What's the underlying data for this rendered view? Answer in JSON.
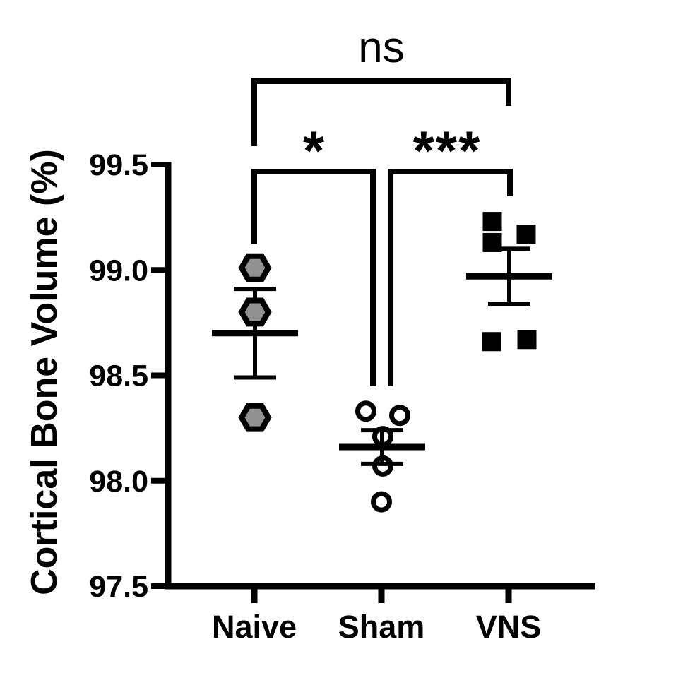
{
  "chart_data": {
    "type": "scatter",
    "title": "",
    "xlabel": "",
    "ylabel": "Cortical Bone Volume (%)",
    "ylim": [
      97.5,
      99.5
    ],
    "yticks": [
      97.5,
      98.0,
      98.5,
      99.0,
      99.5
    ],
    "ytick_labels": [
      "97.5",
      "98.0",
      "98.5",
      "99.0",
      "99.5"
    ],
    "categories": [
      "Naive",
      "Sham",
      "VNS"
    ],
    "grid": false,
    "legend": "none",
    "error_bar_type": "mean_sem",
    "series": [
      {
        "name": "Naive",
        "marker": "hexagon",
        "marker_fill": "#919191",
        "marker_stroke": "#000000",
        "values": [
          99.01,
          98.8,
          98.3
        ],
        "x_offsets": [
          1,
          1,
          1
        ],
        "mean": 98.7,
        "sem": 0.21
      },
      {
        "name": "Sham",
        "marker": "open-circle",
        "marker_fill": "none",
        "marker_stroke": "#000000",
        "values": [
          98.33,
          98.31,
          98.21,
          98.07,
          97.9
        ],
        "x_offsets": [
          -22,
          26,
          2,
          2,
          0
        ],
        "mean": 98.16,
        "sem": 0.08
      },
      {
        "name": "VNS",
        "marker": "square",
        "marker_fill": "#000000",
        "marker_stroke": "#000000",
        "values": [
          99.23,
          99.17,
          99.13,
          98.66,
          98.67
        ],
        "x_offsets": [
          -23,
          25,
          -23,
          -24,
          26
        ],
        "mean": 98.97,
        "sem": 0.13
      }
    ],
    "annotations": [
      {
        "label": "ns",
        "from": "Naive",
        "to": "VNS"
      },
      {
        "label": "*",
        "from": "Naive",
        "to": "Sham"
      },
      {
        "label": "***",
        "from": "Sham",
        "to": "VNS"
      }
    ],
    "colors": {
      "line": "#000000",
      "background": "#ffffff",
      "hexagon_fill": "#919191"
    }
  }
}
